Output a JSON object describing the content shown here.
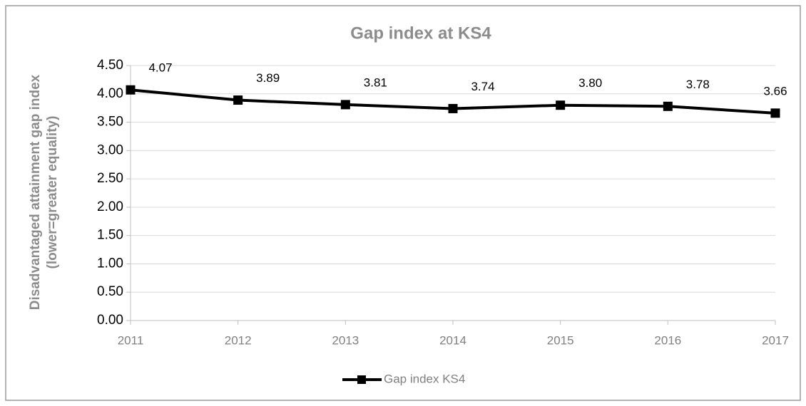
{
  "chart_data": {
    "type": "line",
    "title": "Gap index at KS4",
    "ylabel": [
      "Disadvantaged attainment gap index",
      "(lower=greater equality)"
    ],
    "x": [
      2011,
      2012,
      2013,
      2014,
      2015,
      2016,
      2017
    ],
    "xlim": [
      2011,
      2017
    ],
    "xticks": [
      2011,
      2012,
      2013,
      2014,
      2015,
      2016,
      2017
    ],
    "ylim": [
      0,
      4.5
    ],
    "yticks": [
      {
        "value": 0,
        "label": "0.00"
      },
      {
        "value": 0.5,
        "label": "0.50"
      },
      {
        "value": 1,
        "label": "1.00"
      },
      {
        "value": 1.5,
        "label": "1.50"
      },
      {
        "value": 2,
        "label": "2.00"
      },
      {
        "value": 2.5,
        "label": "2.50"
      },
      {
        "value": 3,
        "label": "3.00"
      },
      {
        "value": 3.5,
        "label": "3.50"
      },
      {
        "value": 4,
        "label": "4.00"
      },
      {
        "value": 4.5,
        "label": "4.50"
      }
    ],
    "grid": true,
    "legend": "bottom",
    "series": [
      {
        "name": "Gap index KS4",
        "color": "#000000",
        "values": [
          4.07,
          3.89,
          3.81,
          3.74,
          3.8,
          3.78,
          3.66
        ],
        "value_labels": [
          "4.07",
          "3.89",
          "3.81",
          "3.74",
          "3.80",
          "3.78",
          "3.66"
        ]
      }
    ]
  }
}
